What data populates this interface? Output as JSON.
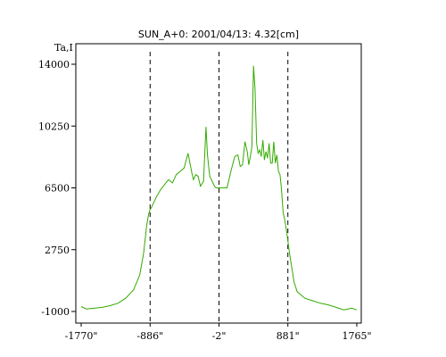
{
  "chart_data": {
    "type": "line",
    "title": "SUN_A+0: 2001/04/13: 4.32[cm]",
    "ylabel": "Ta,I",
    "xlabel": "",
    "x_ticks": [
      {
        "value": -1770,
        "label": "-1770\""
      },
      {
        "value": -886,
        "label": "-886\""
      },
      {
        "value": -2,
        "label": "-2\""
      },
      {
        "value": 881,
        "label": "881\""
      },
      {
        "value": 1765,
        "label": "1765\""
      }
    ],
    "y_ticks": [
      {
        "value": -1000,
        "label": "-1000"
      },
      {
        "value": 2750,
        "label": "2750"
      },
      {
        "value": 6500,
        "label": "6500"
      },
      {
        "value": 10250,
        "label": "10250"
      },
      {
        "value": 14000,
        "label": "14000"
      }
    ],
    "xlim": [
      -1770,
      1765
    ],
    "ylim": [
      -1000,
      14000
    ],
    "vertical_markers": [
      -886,
      -2,
      881
    ],
    "series_color": "#33aa00",
    "marker_color": "#000000",
    "series": [
      {
        "x": [
          -1770,
          -1700,
          -1600,
          -1500,
          -1400,
          -1300,
          -1200,
          -1100,
          -1020,
          -970,
          -930,
          -905,
          -886,
          -870,
          -840,
          -800,
          -750,
          -700,
          -650,
          -600,
          -550,
          -500,
          -450,
          -400,
          -350,
          -330,
          -300,
          -270,
          -240,
          -200,
          -170,
          -150,
          -135,
          -120,
          -100,
          -80,
          -60,
          -40,
          -20,
          0,
          50,
          100,
          150,
          200,
          240,
          270,
          300,
          330,
          360,
          380,
          400,
          420,
          440,
          460,
          480,
          500,
          520,
          540,
          560,
          580,
          600,
          620,
          640,
          660,
          680,
          700,
          720,
          740,
          760,
          780,
          800,
          820,
          840,
          860,
          881,
          900,
          930,
          960,
          1000,
          1100,
          1200,
          1300,
          1400,
          1500,
          1600,
          1700,
          1765
        ],
        "y": [
          -700,
          -850,
          -800,
          -750,
          -650,
          -500,
          -200,
          300,
          1200,
          2500,
          4200,
          4900,
          5200,
          5300,
          5600,
          6000,
          6400,
          6700,
          7000,
          6800,
          7300,
          7500,
          7700,
          8600,
          7400,
          7000,
          7300,
          7200,
          6600,
          6900,
          10200,
          8500,
          7800,
          7200,
          7000,
          6800,
          6600,
          6500,
          6500,
          6500,
          6500,
          6500,
          7500,
          8400,
          8500,
          7800,
          7900,
          9300,
          8700,
          7900,
          8400,
          9000,
          13900,
          12500,
          9200,
          8600,
          8800,
          8400,
          9400,
          8200,
          8700,
          8300,
          9200,
          8000,
          8000,
          9300,
          8000,
          8500,
          7500,
          7300,
          6400,
          5000,
          4600,
          4000,
          3300,
          2600,
          1700,
          800,
          200,
          -200,
          -350,
          -500,
          -600,
          -750,
          -900,
          -800,
          -900
        ]
      }
    ],
    "grid": false,
    "legend": "none"
  }
}
